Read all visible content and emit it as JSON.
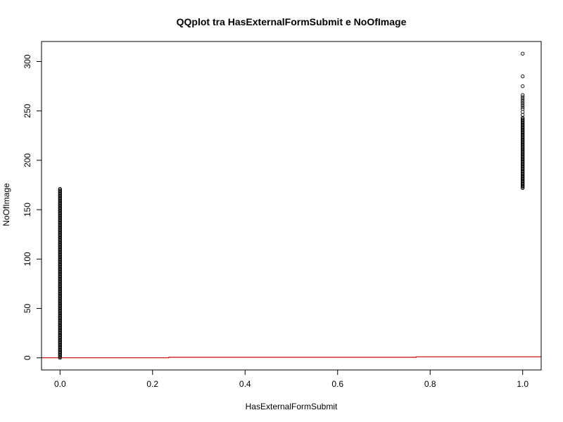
{
  "chart_data": {
    "type": "scatter",
    "title": "QQplot tra HasExternalFormSubmit e NoOfImage",
    "xlabel": "HasExternalFormSubmit",
    "ylabel": "NoOfImage",
    "xlim": [
      -0.04,
      1.04
    ],
    "ylim": [
      -12.3,
      320.3
    ],
    "x_ticks": [
      0.0,
      0.2,
      0.4,
      0.6,
      0.8,
      1.0
    ],
    "x_tick_labels": [
      "0.0",
      "0.2",
      "0.4",
      "0.6",
      "0.8",
      "1.0"
    ],
    "y_ticks": [
      0,
      50,
      100,
      150,
      200,
      250,
      300
    ],
    "y_tick_labels": [
      "0",
      "50",
      "100",
      "150",
      "200",
      "250",
      "300"
    ],
    "grid": false,
    "point_style": "open-circle",
    "point_color": "#000000",
    "series": [
      {
        "x": 0,
        "y_min": 0,
        "y_max": 171,
        "y_step": 1
      },
      {
        "x": 1,
        "y_min": 172,
        "y_max": 243,
        "y_step": 1,
        "y_extra": [
          246,
          249,
          252,
          254,
          256,
          258,
          260,
          262,
          264,
          266,
          275,
          285,
          308
        ]
      }
    ],
    "reference_line": {
      "color": "#cc0000",
      "x": [
        -0.04,
        0.235,
        0.235,
        0.77,
        0.77,
        1.04
      ],
      "y": [
        0,
        0,
        0.5,
        0.5,
        1,
        1
      ]
    }
  }
}
